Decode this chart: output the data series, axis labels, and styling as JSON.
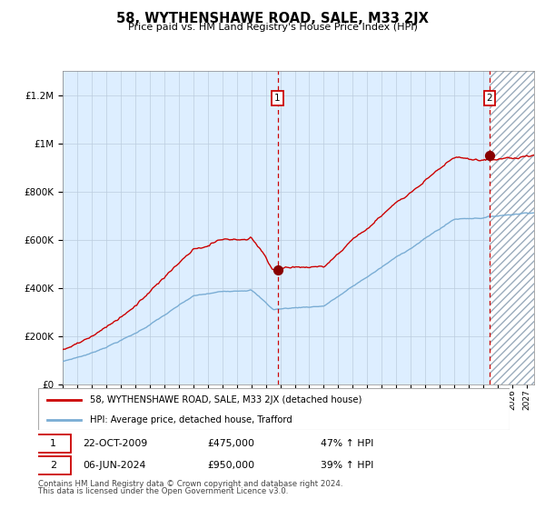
{
  "title": "58, WYTHENSHAWE ROAD, SALE, M33 2JX",
  "subtitle": "Price paid vs. HM Land Registry's House Price Index (HPI)",
  "legend_line1": "58, WYTHENSHAWE ROAD, SALE, M33 2JX (detached house)",
  "legend_line2": "HPI: Average price, detached house, Trafford",
  "annotation1_date": "22-OCT-2009",
  "annotation1_price": "£475,000",
  "annotation1_hpi": "47% ↑ HPI",
  "annotation2_date": "06-JUN-2024",
  "annotation2_price": "£950,000",
  "annotation2_hpi": "39% ↑ HPI",
  "footer1": "Contains HM Land Registry data © Crown copyright and database right 2024.",
  "footer2": "This data is licensed under the Open Government Licence v3.0.",
  "red_line_color": "#cc0000",
  "blue_line_color": "#7aadd4",
  "background_plot_color": "#ddeeff",
  "hatch_color": "#aabbcc",
  "dashed_line_color": "#cc0000",
  "grid_color": "#bbccdd",
  "ylim": [
    0,
    1300000
  ],
  "yticks": [
    0,
    200000,
    400000,
    600000,
    800000,
    1000000,
    1200000
  ],
  "sale1_date_num": 2009.81,
  "sale1_value": 475000,
  "sale2_date_num": 2024.43,
  "sale2_value": 950000,
  "xstart": 1995.0,
  "xend": 2027.5
}
